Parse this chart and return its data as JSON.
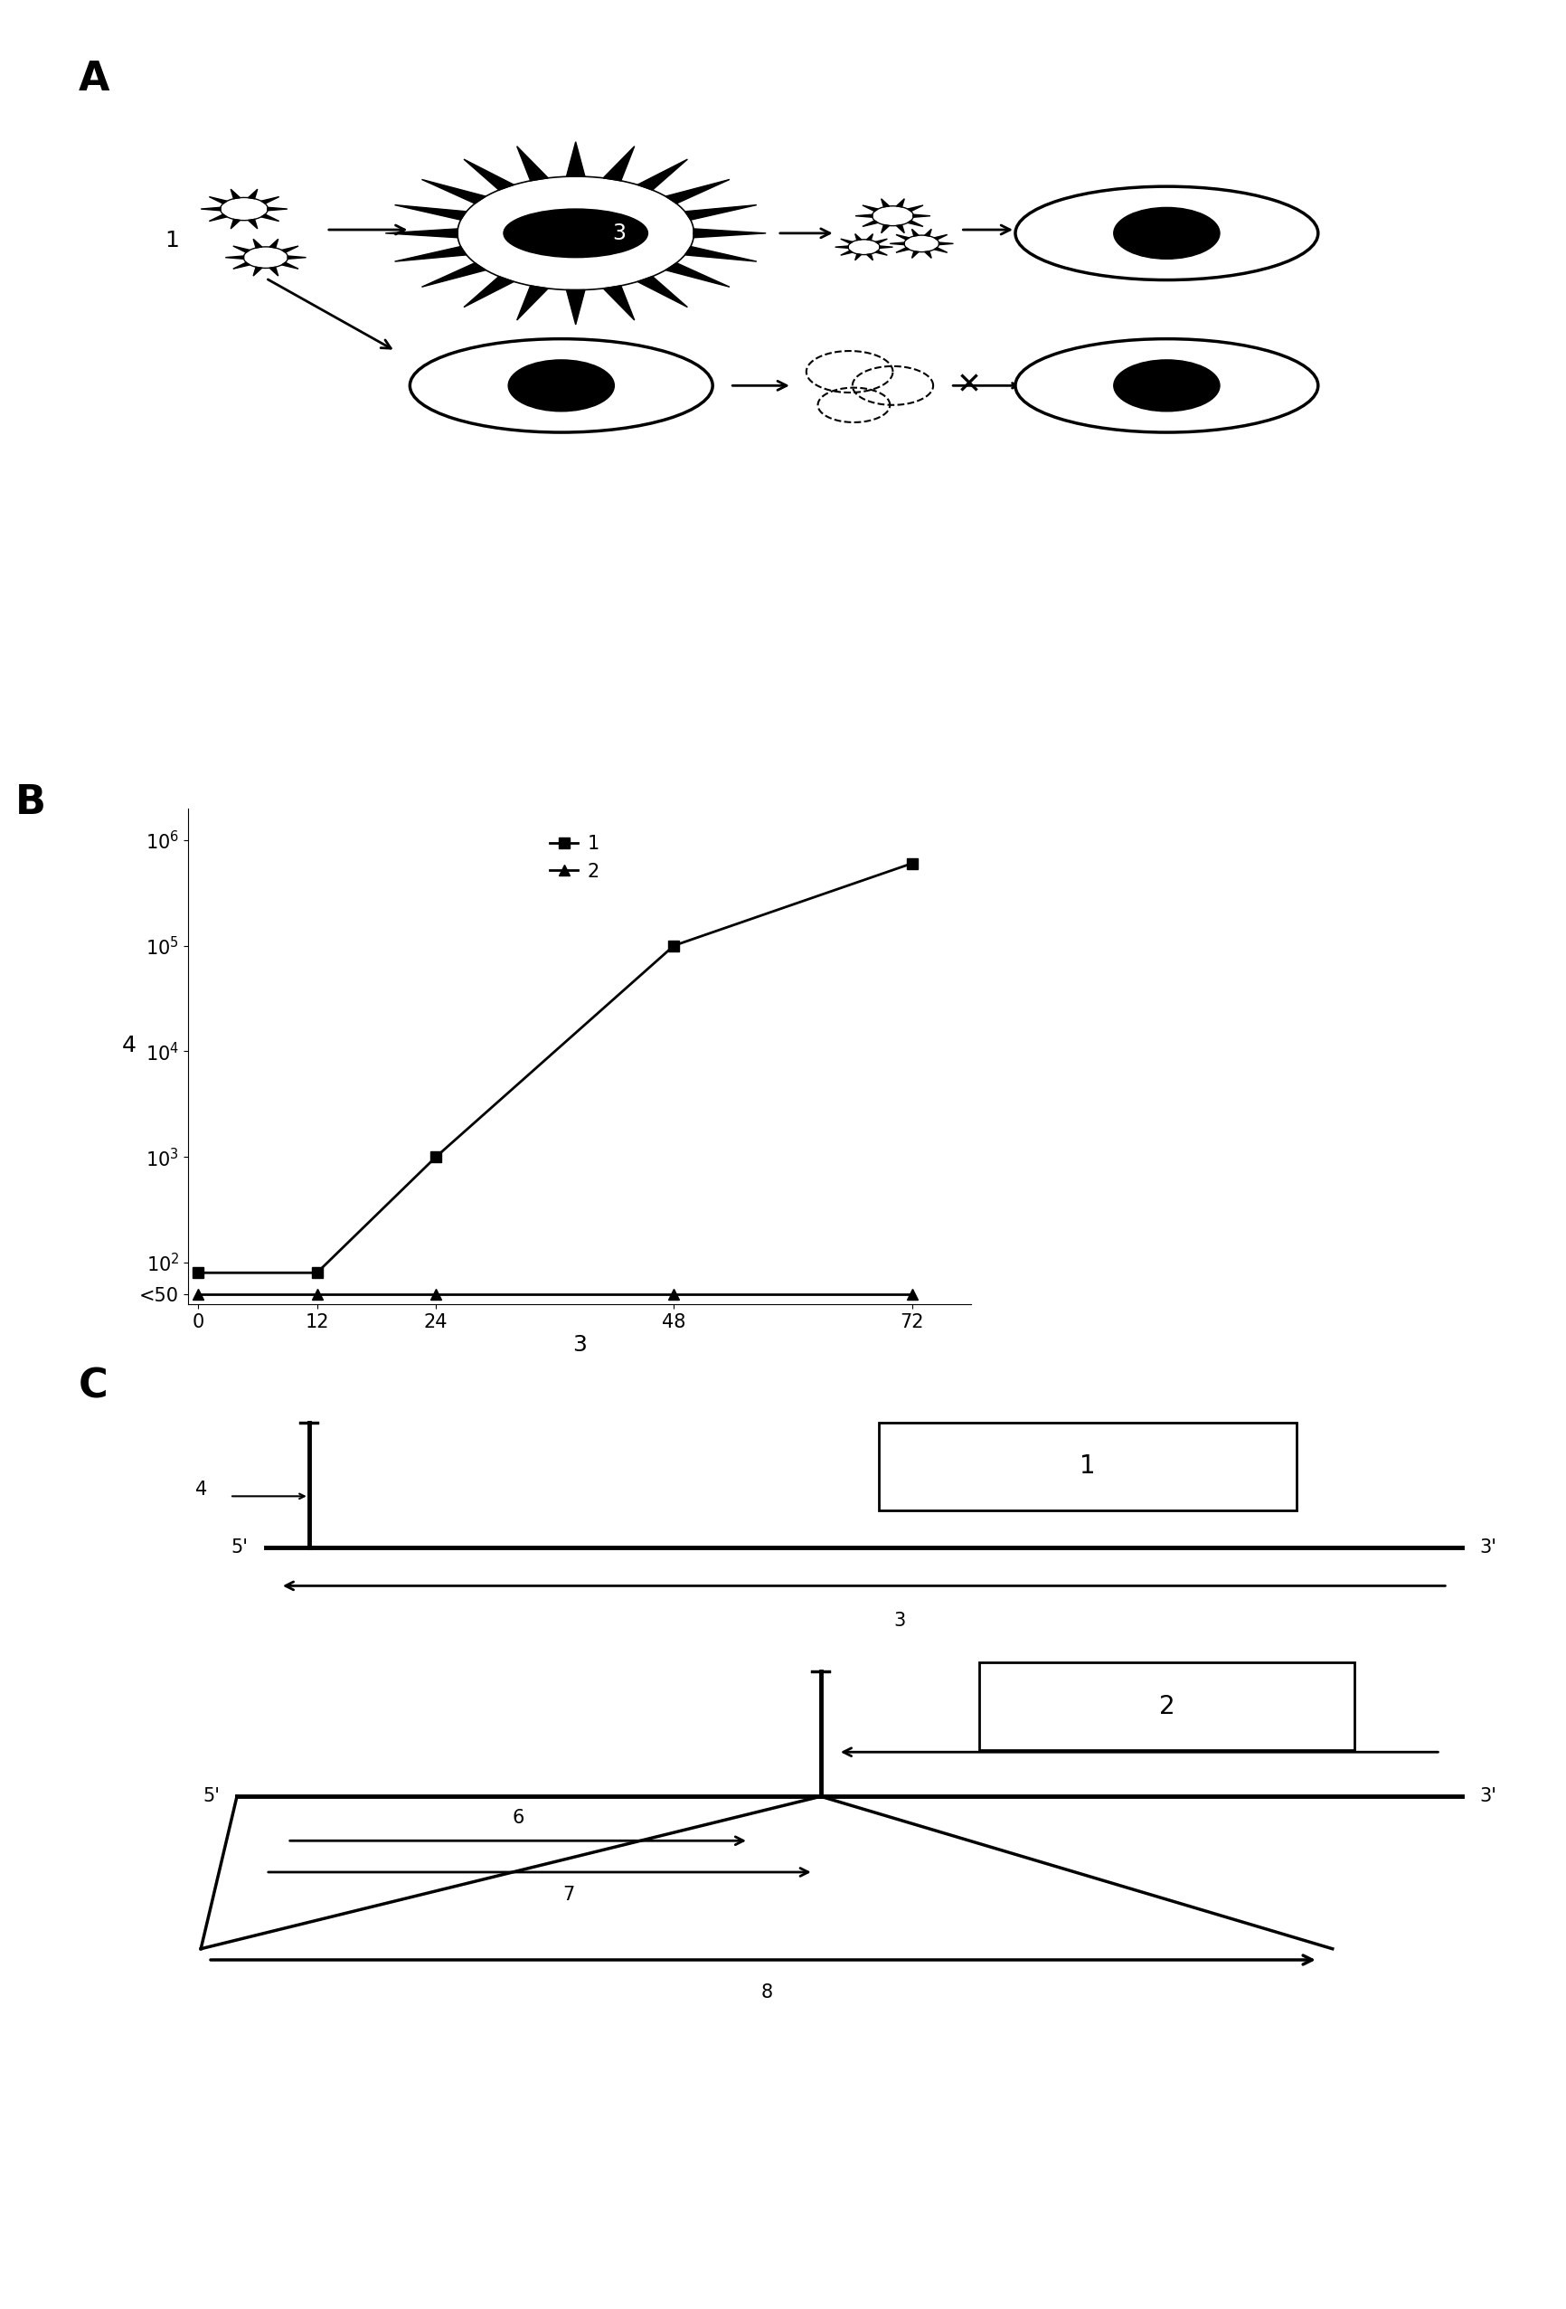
{
  "panel_A_label": "A",
  "panel_B_label": "B",
  "panel_C_label": "C",
  "series1_x": [
    0,
    12,
    24,
    48,
    72
  ],
  "series1_y": [
    80,
    80,
    1000,
    100000,
    600000
  ],
  "series2_x": [
    0,
    12,
    24,
    48,
    72
  ],
  "series2_y": [
    50,
    50,
    50,
    50,
    50
  ],
  "xlabel": "3",
  "ylabel": "4",
  "legend1": "1",
  "legend2": "2",
  "xtick_labels": [
    "0",
    "12",
    "24",
    "48",
    "72"
  ],
  "bg_color": "#ffffff"
}
